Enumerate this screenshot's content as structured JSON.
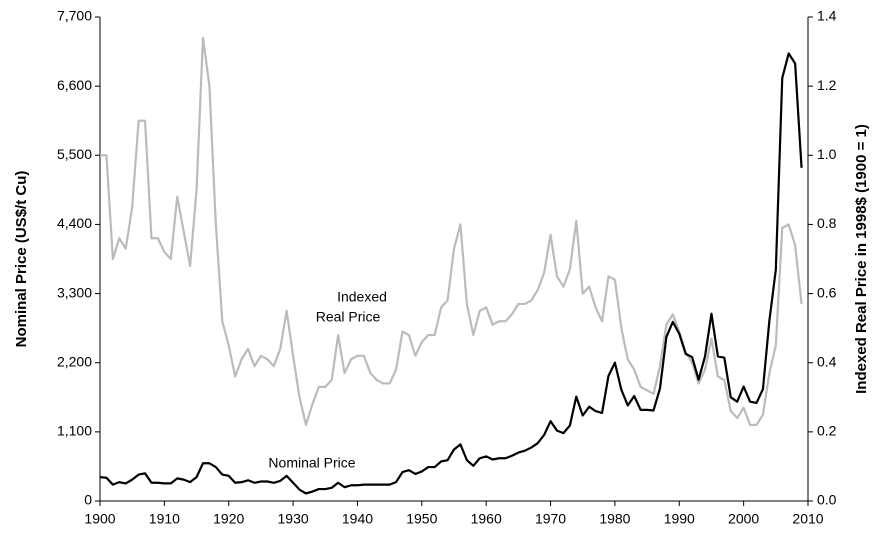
{
  "chart_data": {
    "type": "line",
    "y_label": "Nominal Price (US$/t Cu)",
    "y2_label": "Indexed Real Price in 1998$ (1900 = 1)",
    "annotations": [
      "Indexed",
      "Real Price",
      "Nominal Price"
    ],
    "x": [
      1900,
      1901,
      1902,
      1903,
      1904,
      1905,
      1906,
      1907,
      1908,
      1909,
      1910,
      1911,
      1912,
      1913,
      1914,
      1915,
      1916,
      1917,
      1918,
      1919,
      1920,
      1921,
      1922,
      1923,
      1924,
      1925,
      1926,
      1927,
      1928,
      1929,
      1930,
      1931,
      1932,
      1933,
      1934,
      1935,
      1936,
      1937,
      1938,
      1939,
      1940,
      1941,
      1942,
      1943,
      1944,
      1945,
      1946,
      1947,
      1948,
      1949,
      1950,
      1951,
      1952,
      1953,
      1954,
      1955,
      1956,
      1957,
      1958,
      1959,
      1960,
      1961,
      1962,
      1963,
      1964,
      1965,
      1966,
      1967,
      1968,
      1969,
      1970,
      1971,
      1972,
      1973,
      1974,
      1975,
      1976,
      1977,
      1978,
      1979,
      1980,
      1981,
      1982,
      1983,
      1984,
      1985,
      1986,
      1987,
      1988,
      1989,
      1990,
      1991,
      1992,
      1993,
      1994,
      1995,
      1996,
      1997,
      1998,
      1999,
      2000,
      2001,
      2002,
      2003,
      2004,
      2005,
      2006,
      2007,
      2008,
      2009
    ],
    "series": [
      {
        "name": "Indexed Real Price",
        "color": "#bbbbbb",
        "axis": "y2",
        "values": [
          1.0,
          1.0,
          0.7,
          0.76,
          0.73,
          0.85,
          1.1,
          1.1,
          0.76,
          0.76,
          0.72,
          0.7,
          0.88,
          0.78,
          0.68,
          0.9,
          1.34,
          1.2,
          0.8,
          0.52,
          0.45,
          0.36,
          0.41,
          0.44,
          0.39,
          0.42,
          0.41,
          0.39,
          0.44,
          0.55,
          0.42,
          0.3,
          0.22,
          0.28,
          0.33,
          0.33,
          0.35,
          0.48,
          0.37,
          0.41,
          0.42,
          0.42,
          0.37,
          0.35,
          0.34,
          0.34,
          0.38,
          0.49,
          0.48,
          0.42,
          0.46,
          0.48,
          0.48,
          0.56,
          0.58,
          0.73,
          0.8,
          0.57,
          0.48,
          0.55,
          0.56,
          0.51,
          0.52,
          0.52,
          0.54,
          0.57,
          0.57,
          0.58,
          0.61,
          0.66,
          0.77,
          0.65,
          0.62,
          0.67,
          0.81,
          0.6,
          0.62,
          0.56,
          0.52,
          0.65,
          0.64,
          0.5,
          0.41,
          0.38,
          0.33,
          0.32,
          0.31,
          0.39,
          0.51,
          0.54,
          0.49,
          0.43,
          0.4,
          0.34,
          0.38,
          0.47,
          0.36,
          0.35,
          0.26,
          0.24,
          0.27,
          0.22,
          0.22,
          0.25,
          0.37,
          0.45,
          0.79,
          0.8,
          0.74,
          0.57
        ]
      },
      {
        "name": "Nominal Price",
        "color": "#000000",
        "values": [
          380,
          370,
          260,
          300,
          280,
          340,
          420,
          440,
          290,
          290,
          280,
          280,
          360,
          340,
          300,
          380,
          600,
          600,
          540,
          420,
          400,
          290,
          300,
          330,
          290,
          310,
          310,
          290,
          320,
          400,
          290,
          180,
          120,
          150,
          190,
          190,
          210,
          290,
          220,
          250,
          250,
          260,
          260,
          260,
          260,
          260,
          300,
          460,
          490,
          430,
          470,
          540,
          540,
          630,
          650,
          820,
          900,
          650,
          560,
          680,
          710,
          660,
          680,
          680,
          720,
          770,
          800,
          850,
          920,
          1050,
          1270,
          1120,
          1080,
          1200,
          1660,
          1360,
          1500,
          1430,
          1400,
          1990,
          2200,
          1770,
          1520,
          1670,
          1450,
          1450,
          1440,
          1790,
          2610,
          2850,
          2660,
          2340,
          2290,
          1930,
          2300,
          2980,
          2300,
          2280,
          1650,
          1580,
          1820,
          1580,
          1560,
          1780,
          2870,
          3680,
          6730,
          7120,
          6960,
          5300
        ]
      }
    ],
    "xlim": [
      1900,
      2010
    ],
    "xticks": [
      1900,
      1910,
      1920,
      1930,
      1940,
      1950,
      1960,
      1970,
      1980,
      1990,
      2000,
      2010
    ],
    "ylim": [
      0,
      7700
    ],
    "yticks": [
      0,
      {
        "value": 1100,
        "label": "1,100"
      },
      {
        "value": 2200,
        "label": "2,200"
      },
      {
        "value": 3300,
        "label": "3,300"
      },
      {
        "value": 4400,
        "label": "4,400"
      },
      {
        "value": 5500,
        "label": "5,500"
      },
      {
        "value": 6600,
        "label": "6,600"
      },
      {
        "value": 7700,
        "label": "7,700"
      }
    ],
    "y2lim": [
      0,
      1.4
    ],
    "y2ticks": [
      {
        "value": 0,
        "label": "0.0"
      },
      0.2,
      0.4,
      0.6,
      0.8,
      {
        "value": 1,
        "label": "1.0"
      },
      1.2,
      1.4
    ]
  }
}
